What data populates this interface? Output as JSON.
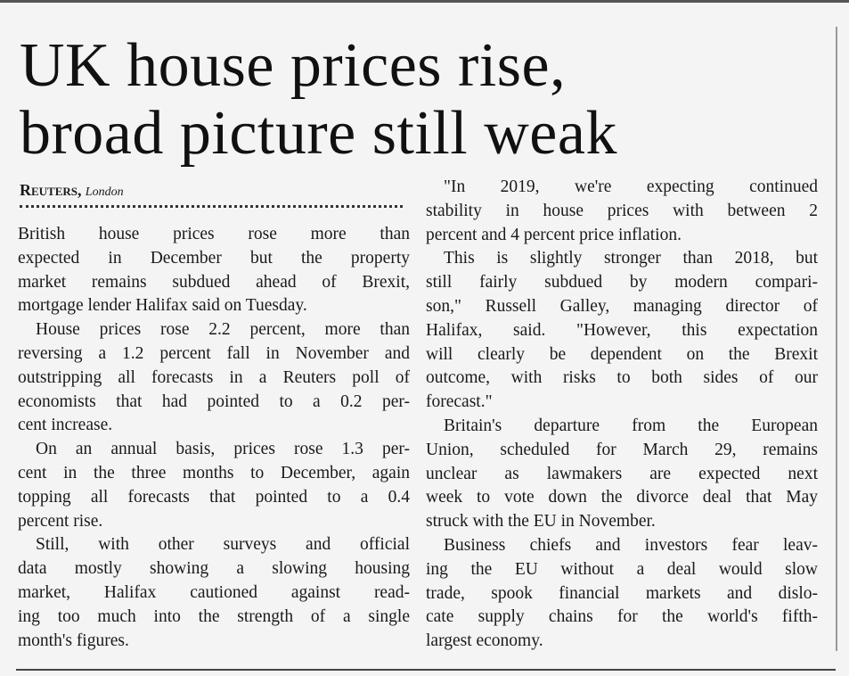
{
  "headline": [
    "UK house prices rise,",
    "broad picture still weak"
  ],
  "byline": {
    "agency": "Reuters,",
    "location": "London"
  },
  "columns": [
    [
      [
        "British house prices rose more than",
        "expected in December but the property",
        "market remains subdued ahead of Brexit,",
        "mortgage lender Halifax said on Tuesday."
      ],
      [
        "House prices rose 2.2 percent, more than",
        "reversing a 1.2 percent fall in November and",
        "outstripping all forecasts in a Reuters poll of",
        "economists that had pointed to a 0.2 per-",
        "cent increase."
      ],
      [
        "On an annual basis, prices rose 1.3 per-",
        "cent in the three months to December, again",
        "topping all forecasts that pointed to a 0.4",
        "percent rise."
      ],
      [
        "Still, with other surveys and official",
        "data mostly showing a slowing housing",
        "market, Halifax cautioned against read-",
        "ing too much into the strength of a single",
        "month's figures."
      ]
    ],
    [
      [
        "\"In 2019, we're expecting continued",
        "stability in house prices with between 2",
        "percent and 4 percent price inflation."
      ],
      [
        "This is slightly stronger than 2018, but",
        "still fairly subdued by modern compari-",
        "son,\" Russell Galley, managing director of",
        "Halifax, said. \"However, this expectation",
        "will clearly be dependent on the Brexit",
        "outcome, with risks to both sides of our",
        "forecast.\""
      ],
      [
        "Britain's departure from the European",
        "Union, scheduled for March 29, remains",
        "unclear as lawmakers are expected next",
        "week to vote down the divorce deal that May",
        "struck with the EU in November."
      ],
      [
        "Business chiefs and investors fear leav-",
        "ing the EU without a deal would slow",
        "trade, spook financial markets and dislo-",
        "cate supply chains for the world's fifth-",
        "largest economy."
      ]
    ]
  ]
}
